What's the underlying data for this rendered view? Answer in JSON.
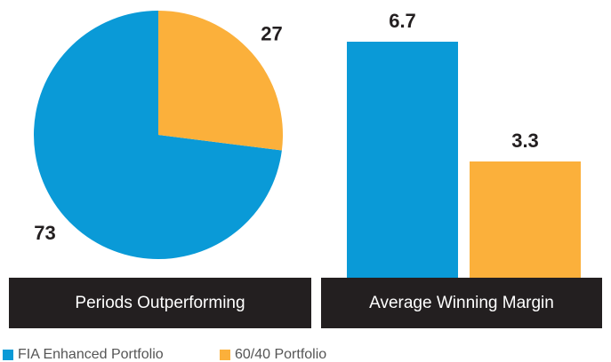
{
  "chart_data": [
    {
      "type": "pie",
      "title": "Periods Outperforming",
      "categories": [
        "FIA Enhanced Portfolio",
        "60/40 Portfolio"
      ],
      "values": [
        73,
        27
      ],
      "colors": [
        "#0a9ad7",
        "#fbb03b"
      ]
    },
    {
      "type": "bar",
      "title": "Average Winning Margin",
      "categories": [
        "FIA Enhanced Portfolio",
        "60/40 Portfolio"
      ],
      "values": [
        6.7,
        3.3
      ],
      "colors": [
        "#0a9ad7",
        "#fbb03b"
      ]
    }
  ]
}
